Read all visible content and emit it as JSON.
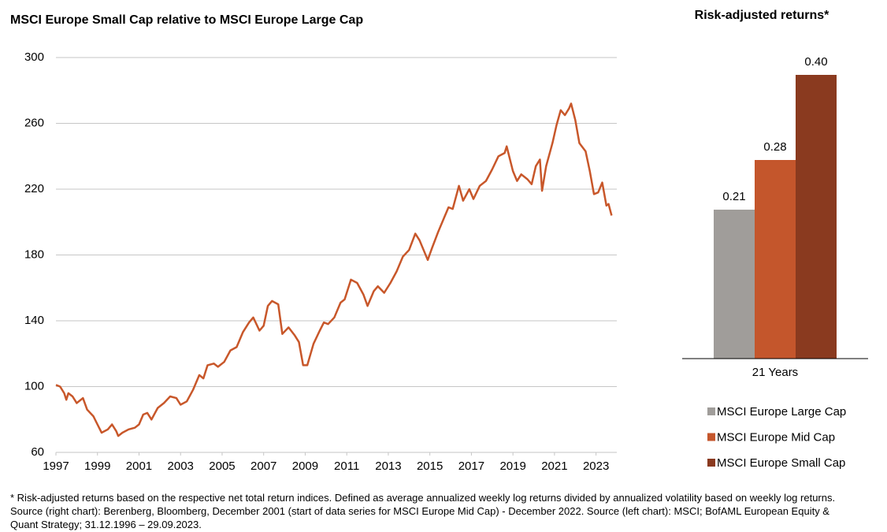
{
  "chart_data": [
    {
      "type": "line",
      "title": "MSCI Europe Small Cap relative to MSCI Europe Large Cap",
      "x": [
        1997.0,
        1997.2,
        1997.4,
        1997.5,
        1997.6,
        1997.8,
        1998.0,
        1998.3,
        1998.5,
        1998.8,
        1999.0,
        1999.2,
        1999.5,
        1999.7,
        1999.9,
        2000.0,
        2000.2,
        2000.5,
        2000.8,
        2001.0,
        2001.2,
        2001.4,
        2001.6,
        2001.9,
        2002.2,
        2002.5,
        2002.8,
        2003.0,
        2003.3,
        2003.6,
        2003.9,
        2004.1,
        2004.3,
        2004.6,
        2004.8,
        2005.1,
        2005.4,
        2005.7,
        2006.0,
        2006.3,
        2006.5,
        2006.8,
        2007.0,
        2007.2,
        2007.4,
        2007.7,
        2007.9,
        2008.2,
        2008.5,
        2008.7,
        2008.9,
        2009.1,
        2009.4,
        2009.7,
        2009.9,
        2010.1,
        2010.4,
        2010.7,
        2010.9,
        2011.2,
        2011.5,
        2011.8,
        2012.0,
        2012.3,
        2012.5,
        2012.8,
        2013.1,
        2013.4,
        2013.7,
        2014.0,
        2014.3,
        2014.5,
        2014.9,
        2015.1,
        2015.4,
        2015.7,
        2015.9,
        2016.1,
        2016.4,
        2016.6,
        2016.9,
        2017.1,
        2017.4,
        2017.7,
        2018.0,
        2018.3,
        2018.6,
        2018.7,
        2019.0,
        2019.2,
        2019.4,
        2019.7,
        2019.9,
        2020.1,
        2020.3,
        2020.4,
        2020.6,
        2020.9,
        2021.1,
        2021.3,
        2021.5,
        2021.7,
        2021.8,
        2022.0,
        2022.2,
        2022.5,
        2022.7,
        2022.9,
        2023.1,
        2023.3,
        2023.5,
        2023.6,
        2023.75
      ],
      "series": [
        {
          "color": "#c8572a",
          "values": [
            101,
            100,
            96,
            92,
            96,
            94,
            90,
            93,
            86,
            82,
            77,
            72,
            74,
            77,
            73,
            70,
            72,
            74,
            75,
            77,
            83,
            84,
            80,
            87,
            90,
            94,
            93,
            89,
            91,
            98,
            107,
            105,
            113,
            114,
            112,
            115,
            122,
            124,
            133,
            139,
            142,
            134,
            137,
            149,
            152,
            150,
            132,
            136,
            131,
            127,
            113,
            113,
            126,
            134,
            139,
            138,
            142,
            151,
            153,
            165,
            163,
            156,
            149,
            158,
            161,
            157,
            163,
            170,
            179,
            183,
            193,
            189,
            177,
            184,
            194,
            203,
            209,
            208,
            222,
            213,
            220,
            214,
            222,
            225,
            232,
            240,
            242,
            246,
            231,
            225,
            229,
            226,
            223,
            234,
            238,
            219,
            234,
            248,
            259,
            268,
            265,
            269,
            272,
            262,
            248,
            243,
            231,
            217,
            218,
            224,
            210,
            211,
            204
          ]
        }
      ],
      "xlim": [
        1997,
        2024
      ],
      "xticks": [
        1997,
        1999,
        2001,
        2003,
        2005,
        2007,
        2009,
        2011,
        2013,
        2015,
        2017,
        2019,
        2021,
        2023
      ],
      "ylim": [
        60,
        300
      ],
      "yticks": [
        60,
        100,
        140,
        180,
        220,
        260,
        300
      ],
      "grid": true
    },
    {
      "type": "bar",
      "title": "Risk-adjusted returns*",
      "categories": [
        "21 Years"
      ],
      "series": [
        {
          "name": "MSCI Europe Large Cap",
          "color": "#a09d9a",
          "values": [
            0.21
          ]
        },
        {
          "name": "MSCI Europe Mid Cap",
          "color": "#c4562c",
          "values": [
            0.28
          ]
        },
        {
          "name": "MSCI Europe Small Cap",
          "color": "#8a3a1f",
          "values": [
            0.4
          ],
          "value_labels": [
            "0.40"
          ]
        }
      ],
      "ylim": [
        0,
        0.4
      ]
    }
  ],
  "footnote": "* Risk-adjusted returns based on the respective net total return indices. Defined as average annualized weekly log returns divided by annualized volatility based on weekly log returns. Source (right chart): Berenberg, Bloomberg, December 2001 (start of data series for MSCI Europe Mid Cap) - December 2022. Source (left chart): MSCI; BofAML European Equity & Quant Strategy; 31.12.1996 – 29.09.2023."
}
